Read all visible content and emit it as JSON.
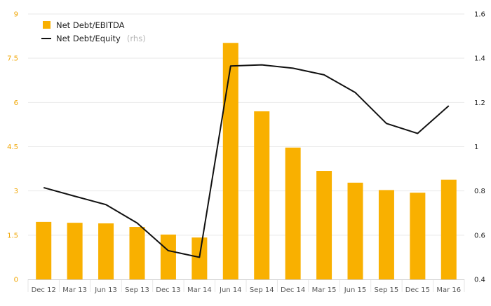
{
  "chart_data": {
    "type": "bar+line",
    "categories": [
      "Dec 12",
      "Mar 13",
      "Jun 13",
      "Sep 13",
      "Dec 13",
      "Mar 14",
      "Jun 14",
      "Sep 14",
      "Dec 14",
      "Mar 15",
      "Jun 15",
      "Sep 15",
      "Dec 15",
      "Mar 16"
    ],
    "series": [
      {
        "name": "Net Debt/EBITDA",
        "kind": "bar",
        "axis": "left",
        "color": "#f9b000",
        "values": [
          1.95,
          1.92,
          1.9,
          1.78,
          1.52,
          1.42,
          8.02,
          5.7,
          4.47,
          3.68,
          3.28,
          3.03,
          2.94,
          3.38
        ]
      },
      {
        "name": "Net Debt/Equity",
        "name_suffix": "(rhs)",
        "kind": "line",
        "axis": "right",
        "color": "#111111",
        "values": [
          0.815,
          0.776,
          0.738,
          0.655,
          0.53,
          0.5,
          1.365,
          1.37,
          1.355,
          1.325,
          1.245,
          1.105,
          1.06,
          1.185
        ]
      }
    ],
    "yleft": {
      "ylim": [
        0,
        9
      ],
      "ticks": [
        "0",
        "1.5",
        "3",
        "4.5",
        "6",
        "7.5",
        "9"
      ],
      "color": "#f0a500"
    },
    "yright": {
      "ylim": [
        0.4,
        1.6
      ],
      "ticks": [
        "0.4",
        "0.6",
        "0.8",
        "1",
        "1.2",
        "1.4",
        "1.6"
      ]
    },
    "grid": true,
    "legend": "top-left"
  }
}
